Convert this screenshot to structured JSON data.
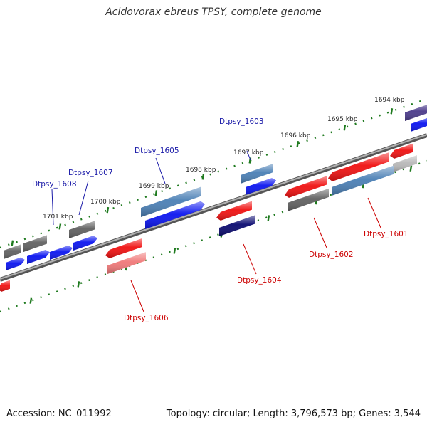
{
  "header": {
    "title": "Acidovorax ebreus TPSY, complete genome"
  },
  "footer": {
    "accession": "Accession: NC_011992",
    "topology": "Topology: circular; Length: 3,796,573 bp; Genes: 3,544"
  },
  "colors": {
    "backbone": "#8a8a8a",
    "tick": "#1f7a1f",
    "label_forward": "#1a1aa8",
    "label_reverse": "#cc0000",
    "gene_blue": "#0a14f0",
    "gene_steel": "#4a7fb5",
    "gene_navy": "#0a0a70",
    "gene_gray": "#606060",
    "gene_lightgray": "#b8b8b8",
    "gene_red": "#f01010",
    "gene_pink": "#f07878",
    "gene_purple": "#4a3a8a"
  },
  "ticks": [
    "1694 kbp",
    "1695 kbp",
    "1696 kbp",
    "1697 kbp",
    "1698 kbp",
    "1699 kbp",
    "1700 kbp",
    "1701 kbp"
  ],
  "labels": {
    "forward": [
      "Dtpsy_1603",
      "Dtpsy_1605",
      "Dtpsy_1607",
      "Dtpsy_1608"
    ],
    "reverse": [
      "Dtpsy_1601",
      "Dtpsy_1602",
      "Dtpsy_1604",
      "Dtpsy_1606"
    ]
  }
}
